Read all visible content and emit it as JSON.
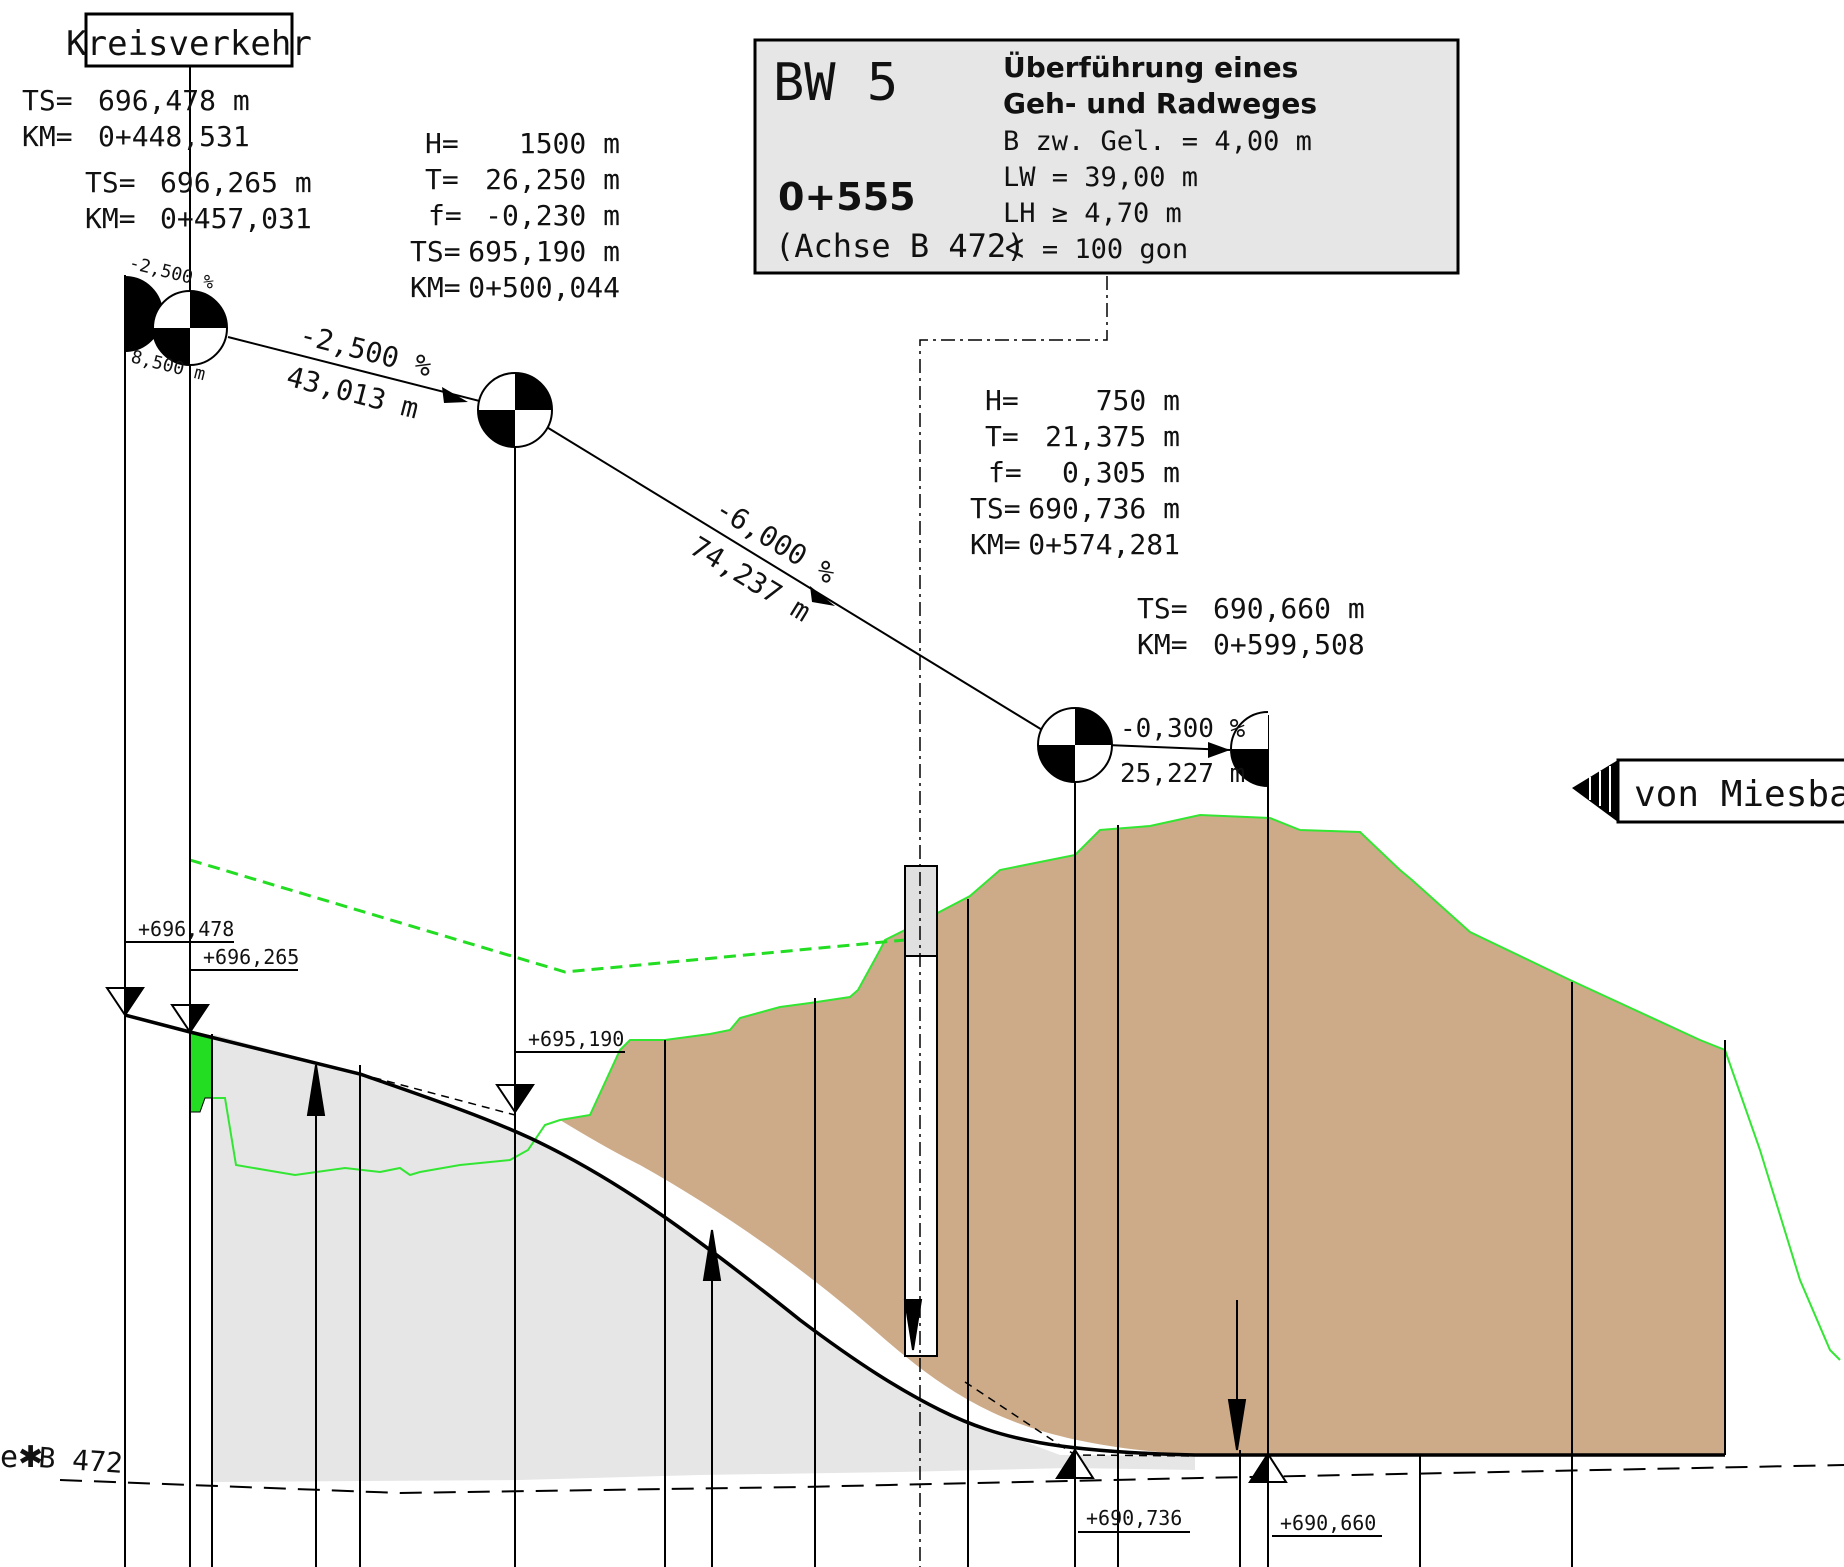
{
  "labels": {
    "kreisverkehr": "Kreisverkehr",
    "von_miesbach": "von Miesbach",
    "axis_b472": "B 472",
    "axis_prefix": "e"
  },
  "bw5": {
    "code": "BW 5",
    "station": "0+555",
    "axis": "(Achse B 472)",
    "title_line1": "Überführung eines",
    "title_line2": "Geh- und Radweges",
    "b_between": "B zw. Gel. = 4,00 m",
    "lw": "LW = 39,00 m",
    "lh": "LH ≥ 4,70 m",
    "angle": "∢ = 100 gon"
  },
  "points": {
    "p1": {
      "ts_label": "TS=",
      "ts": "696,478 m",
      "km_label": "KM=",
      "km": "0+448,531"
    },
    "p2": {
      "ts_label": "TS=",
      "ts": "696,265 m",
      "km_label": "KM=",
      "km": "0+457,031"
    },
    "p3": {
      "h_label": "H=",
      "h": "1500 m",
      "t_label": "T=",
      "t": "26,250 m",
      "f_label": "f=",
      "f": "-0,230 m",
      "ts_label": "TS=",
      "ts": "695,190 m",
      "km_label": "KM=",
      "km": "0+500,044"
    },
    "p4": {
      "h_label": "H=",
      "h": "750 m",
      "t_label": "T=",
      "t": "21,375 m",
      "f_label": "f=",
      "f": "0,305 m",
      "ts_label": "TS=",
      "ts": "690,736 m",
      "km_label": "KM=",
      "km": "0+574,281"
    },
    "p5": {
      "ts_label": "TS=",
      "ts": "690,660 m",
      "km_label": "KM=",
      "km": "0+599,508"
    }
  },
  "grades": {
    "g0": {
      "slope": "-2,500 %",
      "length": "8,500 m"
    },
    "g1": {
      "slope": "-2,500 %",
      "length": "43,013 m"
    },
    "g2": {
      "slope": "-6,000 %",
      "length": "74,237 m"
    },
    "g3": {
      "slope": "-0,300 %",
      "length": "25,227 m"
    }
  },
  "elevations": {
    "e1": "+696,478",
    "e2": "+696,265",
    "e3": "+695,190",
    "e4": "+690,736",
    "e5": "+690,660"
  },
  "colors": {
    "terrain_fill": "#cdab88",
    "terrain_line": "#33e633",
    "cut_fill": "#e6e6e6",
    "accent_green": "#22dd22",
    "box_fill": "#e6e6e6"
  }
}
